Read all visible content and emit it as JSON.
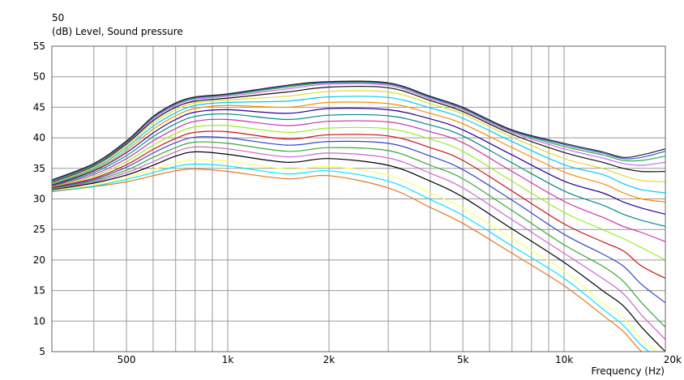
{
  "chart_data": {
    "type": "line",
    "top_label": "50",
    "ylabel": "(dB)  Level, Sound pressure",
    "xlabel": "Frequency  (Hz)",
    "x_scale": "log",
    "xlim": [
      300,
      20000
    ],
    "ylim": [
      5,
      55
    ],
    "grid": true,
    "legend": "none",
    "y_ticks": [
      "5",
      "10",
      "15",
      "20",
      "25",
      "30",
      "35",
      "40",
      "45",
      "50",
      "55"
    ],
    "x_tick_values": [
      500,
      1000,
      2000,
      5000,
      10000,
      20000
    ],
    "x_tick_labels": [
      "500",
      "1k",
      "2k",
      "5k",
      "10k",
      "20k"
    ],
    "x_grid": [
      400,
      500,
      600,
      700,
      800,
      900,
      1000,
      2000,
      3000,
      4000,
      5000,
      6000,
      7000,
      8000,
      9000,
      10000,
      20000
    ],
    "x": [
      300,
      400,
      500,
      600,
      700,
      800,
      1000,
      1500,
      2000,
      3000,
      4000,
      5000,
      7000,
      10000,
      13000,
      15000,
      17000,
      20000
    ],
    "series": [
      {
        "color": "#e87722",
        "values": [
          31.2,
          32.0,
          32.8,
          33.8,
          34.6,
          34.9,
          34.5,
          33.3,
          33.8,
          31.8,
          28.6,
          26.0,
          21.1,
          15.8,
          11.0,
          8.3,
          5.0,
          2.0
        ]
      },
      {
        "color": "#00e5ff",
        "values": [
          31.3,
          32.1,
          33.2,
          34.3,
          35.3,
          35.7,
          35.4,
          34.1,
          34.6,
          32.9,
          29.9,
          27.3,
          22.3,
          17.0,
          12.0,
          9.3,
          6.0,
          3.0
        ]
      },
      {
        "color": "#ffff66",
        "values": [
          31.4,
          32.3,
          33.5,
          34.8,
          35.9,
          36.4,
          36.2,
          34.9,
          35.3,
          33.9,
          31.0,
          28.5,
          23.5,
          18.2,
          13.0,
          10.5,
          7.0,
          4.0
        ]
      },
      {
        "color": "#000000",
        "values": [
          31.5,
          32.6,
          33.9,
          35.5,
          37.0,
          37.7,
          37.3,
          36.0,
          36.6,
          35.5,
          32.9,
          30.3,
          25.1,
          19.6,
          15.0,
          12.5,
          9.0,
          5.0
        ]
      },
      {
        "color": "#cc66cc",
        "values": [
          31.6,
          32.8,
          34.3,
          36.1,
          37.7,
          38.5,
          38.2,
          36.9,
          37.5,
          36.7,
          34.2,
          31.8,
          26.6,
          21.1,
          17.0,
          14.5,
          11.0,
          7.0
        ]
      },
      {
        "color": "#33aa33",
        "values": [
          31.7,
          33.0,
          34.7,
          36.8,
          38.4,
          39.3,
          39.1,
          37.8,
          38.4,
          37.9,
          35.5,
          33.3,
          28.1,
          22.5,
          19.0,
          16.5,
          13.0,
          9.0
        ]
      },
      {
        "color": "#3344cc",
        "values": [
          31.8,
          33.2,
          35.2,
          37.5,
          39.2,
          40.1,
          40.0,
          38.8,
          39.4,
          39.1,
          37.0,
          34.8,
          29.8,
          24.2,
          21.0,
          19.0,
          16.0,
          13.0
        ]
      },
      {
        "color": "#cc1111",
        "values": [
          31.9,
          33.4,
          35.6,
          38.1,
          39.9,
          40.9,
          41.0,
          39.8,
          40.5,
          40.3,
          38.4,
          36.3,
          31.3,
          25.9,
          23.0,
          21.5,
          19.0,
          17.0
        ]
      },
      {
        "color": "#99ee22",
        "values": [
          32.0,
          33.7,
          36.1,
          38.8,
          40.7,
          41.8,
          42.0,
          40.9,
          41.6,
          41.5,
          39.8,
          37.8,
          32.9,
          27.8,
          25.0,
          23.5,
          22.0,
          20.0
        ]
      },
      {
        "color": "#cc33aa",
        "values": [
          32.1,
          34.0,
          36.6,
          39.5,
          41.5,
          42.7,
          43.0,
          42.0,
          42.7,
          42.6,
          41.0,
          39.2,
          34.5,
          29.6,
          27.0,
          25.5,
          24.5,
          23.0
        ]
      },
      {
        "color": "#008888",
        "values": [
          32.2,
          34.3,
          37.1,
          40.2,
          42.3,
          43.5,
          43.9,
          43.0,
          43.7,
          43.6,
          42.1,
          40.3,
          35.9,
          31.3,
          29.0,
          27.5,
          26.5,
          25.5
        ]
      },
      {
        "color": "#220099",
        "values": [
          32.3,
          34.6,
          37.6,
          40.8,
          43.0,
          44.2,
          44.6,
          44.0,
          44.8,
          44.6,
          43.1,
          41.3,
          37.2,
          32.9,
          31.0,
          29.5,
          28.5,
          27.5
        ]
      },
      {
        "color": "#ff8800",
        "values": [
          32.4,
          34.8,
          38.0,
          41.4,
          43.6,
          44.8,
          45.3,
          45.0,
          45.8,
          45.6,
          44.0,
          42.3,
          38.4,
          34.4,
          32.5,
          31.0,
          30.0,
          29.5
        ]
      },
      {
        "color": "#00ccee",
        "values": [
          32.5,
          35.0,
          38.4,
          41.9,
          44.1,
          45.3,
          45.8,
          46.0,
          46.7,
          46.6,
          44.9,
          43.2,
          39.4,
          35.6,
          34.0,
          32.5,
          31.5,
          31.0
        ]
      },
      {
        "color": "#dddd33",
        "values": [
          32.6,
          35.2,
          38.7,
          42.4,
          44.6,
          45.7,
          46.2,
          46.8,
          47.6,
          47.5,
          45.6,
          43.9,
          40.1,
          36.6,
          35.0,
          33.8,
          33.0,
          32.8
        ]
      },
      {
        "color": "#111111",
        "values": [
          32.7,
          35.4,
          39.0,
          42.8,
          45.0,
          46.0,
          46.5,
          47.5,
          48.3,
          48.2,
          46.1,
          44.3,
          40.6,
          37.6,
          36.0,
          35.0,
          34.5,
          34.5
        ]
      },
      {
        "color": "#cc66ee",
        "values": [
          32.8,
          35.5,
          39.2,
          43.1,
          45.3,
          46.3,
          46.8,
          48.0,
          48.8,
          48.6,
          46.4,
          44.6,
          40.9,
          38.2,
          36.7,
          35.8,
          35.5,
          36.0
        ]
      },
      {
        "color": "#22aa44",
        "values": [
          32.9,
          35.6,
          39.3,
          43.3,
          45.5,
          46.5,
          47.0,
          48.3,
          49.0,
          48.8,
          46.6,
          44.8,
          41.1,
          38.6,
          37.2,
          36.3,
          36.3,
          37.0
        ]
      },
      {
        "color": "#3355dd",
        "values": [
          33.0,
          35.7,
          39.4,
          43.4,
          45.6,
          46.6,
          47.1,
          48.5,
          49.1,
          48.9,
          46.7,
          44.9,
          41.2,
          38.9,
          37.5,
          36.6,
          36.8,
          37.8
        ]
      },
      {
        "color": "#222222",
        "values": [
          33.1,
          35.8,
          39.5,
          43.5,
          45.7,
          46.7,
          47.2,
          48.6,
          49.2,
          49.0,
          46.8,
          45.0,
          41.3,
          39.1,
          37.7,
          36.8,
          37.2,
          38.2
        ]
      }
    ]
  }
}
